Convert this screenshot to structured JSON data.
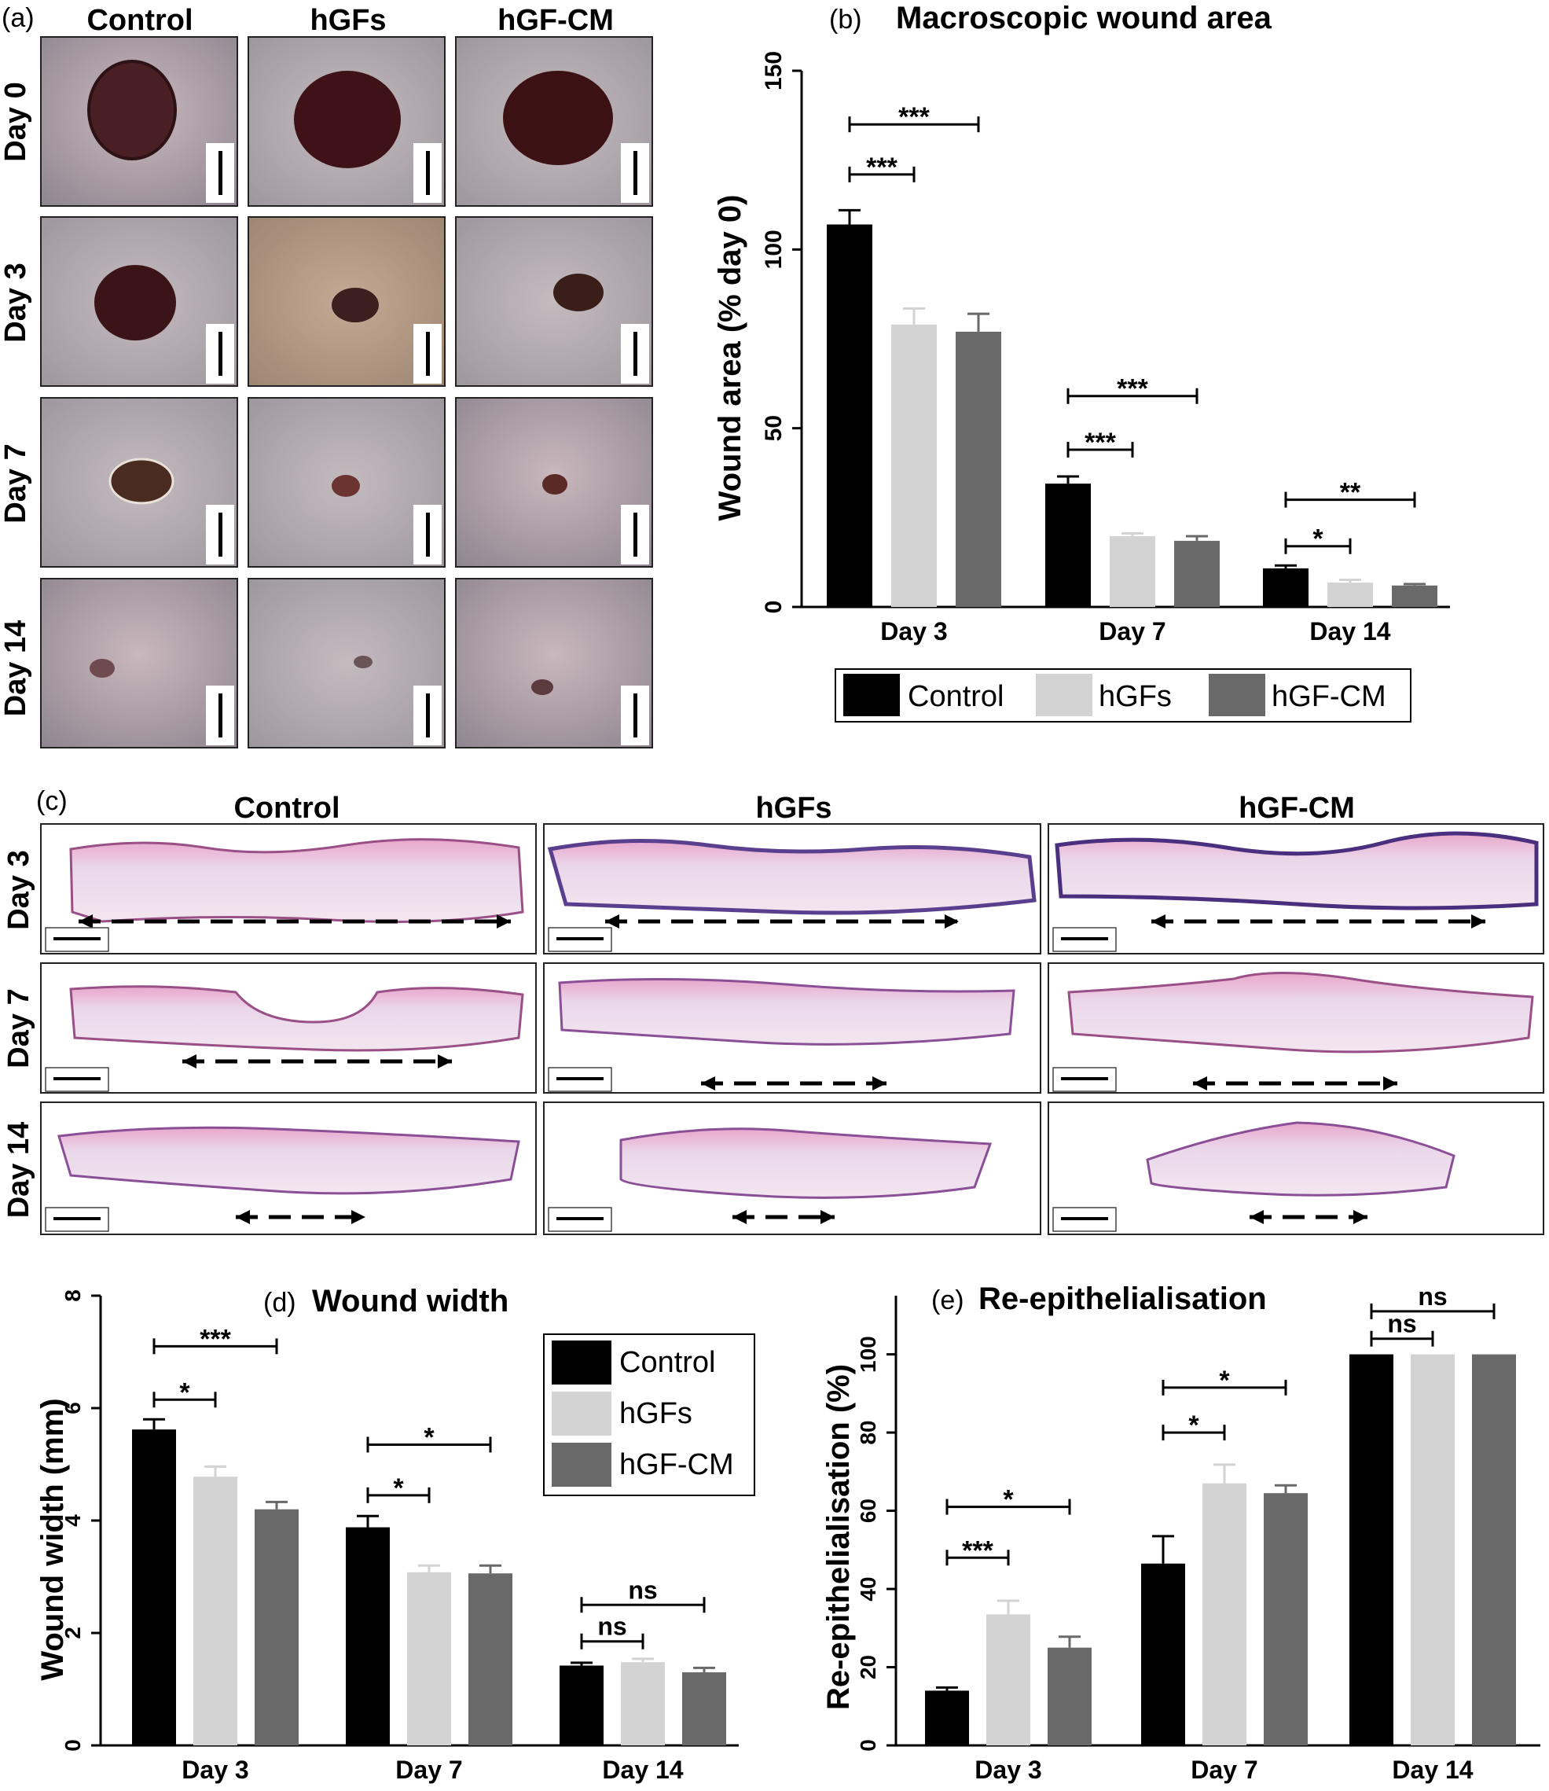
{
  "panel_a": {
    "label": "(a)",
    "columns": [
      "Control",
      "hGFs",
      "hGF-CM"
    ],
    "rows": [
      "Day 0",
      "Day 3",
      "Day 7",
      "Day 14"
    ]
  },
  "panel_c": {
    "label": "(c)",
    "columns": [
      "Control",
      "hGFs",
      "hGF-CM"
    ],
    "rows": [
      "Day 3",
      "Day 7",
      "Day 14"
    ]
  },
  "colors": {
    "Control": "#000000",
    "hGFs": "#d3d3d3",
    "hGF-CM": "#696969"
  },
  "chart_data": [
    {
      "id": "b",
      "panel_label": "(b)",
      "type": "bar",
      "title": "Macroscopic wound area",
      "ylabel": "Wound area (% day 0)",
      "xlabel": "",
      "categories": [
        "Day 3",
        "Day 7",
        "Day 14"
      ],
      "ylim": [
        0,
        150
      ],
      "yticks": [
        0,
        50,
        100,
        150
      ],
      "series": [
        {
          "name": "Control",
          "values": [
            107,
            34.5,
            10.8
          ],
          "errors": [
            4,
            2,
            0.8
          ]
        },
        {
          "name": "hGFs",
          "values": [
            79,
            19.8,
            6.8
          ],
          "errors": [
            4.5,
            0.8,
            0.8
          ]
        },
        {
          "name": "hGF-CM",
          "values": [
            77,
            18.5,
            6.0
          ],
          "errors": [
            5,
            1.3,
            0.4
          ]
        }
      ],
      "legend": {
        "placement": "bottom",
        "entries": [
          "Control",
          "hGFs",
          "hGF-CM"
        ]
      },
      "significance": [
        {
          "group": 0,
          "from": 0,
          "to": 1,
          "label": "***",
          "y": 121
        },
        {
          "group": 0,
          "from": 0,
          "to": 2,
          "label": "***",
          "y": 135
        },
        {
          "group": 1,
          "from": 0,
          "to": 1,
          "label": "***",
          "y": 44
        },
        {
          "group": 1,
          "from": 0,
          "to": 2,
          "label": "***",
          "y": 59
        },
        {
          "group": 2,
          "from": 0,
          "to": 1,
          "label": "*",
          "y": 17
        },
        {
          "group": 2,
          "from": 0,
          "to": 2,
          "label": "**",
          "y": 30
        }
      ]
    },
    {
      "id": "d",
      "panel_label": "(d)",
      "type": "bar",
      "title": "Wound width",
      "ylabel": "Wound width (mm)",
      "xlabel": "",
      "categories": [
        "Day 3",
        "Day 7",
        "Day 14"
      ],
      "ylim": [
        0,
        8
      ],
      "yticks": [
        0,
        2,
        4,
        6,
        8
      ],
      "series": [
        {
          "name": "Control",
          "values": [
            5.62,
            3.88,
            1.42
          ],
          "errors": [
            0.18,
            0.2,
            0.05
          ]
        },
        {
          "name": "hGFs",
          "values": [
            4.78,
            3.08,
            1.48
          ],
          "errors": [
            0.18,
            0.12,
            0.06
          ]
        },
        {
          "name": "hGF-CM",
          "values": [
            4.2,
            3.06,
            1.3
          ],
          "errors": [
            0.13,
            0.14,
            0.08
          ]
        }
      ],
      "legend": {
        "placement": "top-right",
        "entries": [
          "Control",
          "hGFs",
          "hGF-CM"
        ]
      },
      "significance": [
        {
          "group": 0,
          "from": 0,
          "to": 1,
          "label": "*",
          "y": 6.15
        },
        {
          "group": 0,
          "from": 0,
          "to": 2,
          "label": "***",
          "y": 7.1
        },
        {
          "group": 1,
          "from": 0,
          "to": 1,
          "label": "*",
          "y": 4.45
        },
        {
          "group": 1,
          "from": 0,
          "to": 2,
          "label": "*",
          "y": 5.35
        },
        {
          "group": 2,
          "from": 0,
          "to": 1,
          "label": "ns",
          "y": 1.85
        },
        {
          "group": 2,
          "from": 0,
          "to": 2,
          "label": "ns",
          "y": 2.5
        }
      ]
    },
    {
      "id": "e",
      "panel_label": "(e)",
      "type": "bar",
      "title": "Re-epithelialisation",
      "ylabel": "Re-epithelialisation (%)",
      "xlabel": "",
      "categories": [
        "Day 3",
        "Day 7",
        "Day 14"
      ],
      "ylim": [
        0,
        115
      ],
      "yticks": [
        0,
        20,
        40,
        60,
        80,
        100
      ],
      "series": [
        {
          "name": "Control",
          "values": [
            14,
            46.5,
            100
          ],
          "errors": [
            0.8,
            7,
            0
          ]
        },
        {
          "name": "hGFs",
          "values": [
            33.5,
            67,
            100
          ],
          "errors": [
            3.5,
            4.8,
            0
          ]
        },
        {
          "name": "hGF-CM",
          "values": [
            25,
            64.5,
            100
          ],
          "errors": [
            2.8,
            2,
            0
          ]
        }
      ],
      "legend": null,
      "significance": [
        {
          "group": 0,
          "from": 0,
          "to": 1,
          "label": "***",
          "y": 48
        },
        {
          "group": 0,
          "from": 0,
          "to": 2,
          "label": "*",
          "y": 61
        },
        {
          "group": 1,
          "from": 0,
          "to": 1,
          "label": "*",
          "y": 80
        },
        {
          "group": 1,
          "from": 0,
          "to": 2,
          "label": "*",
          "y": 91.5
        },
        {
          "group": 2,
          "from": 0,
          "to": 1,
          "label": "ns",
          "y": 104
        },
        {
          "group": 2,
          "from": 0,
          "to": 2,
          "label": "ns",
          "y": 111
        }
      ]
    }
  ]
}
